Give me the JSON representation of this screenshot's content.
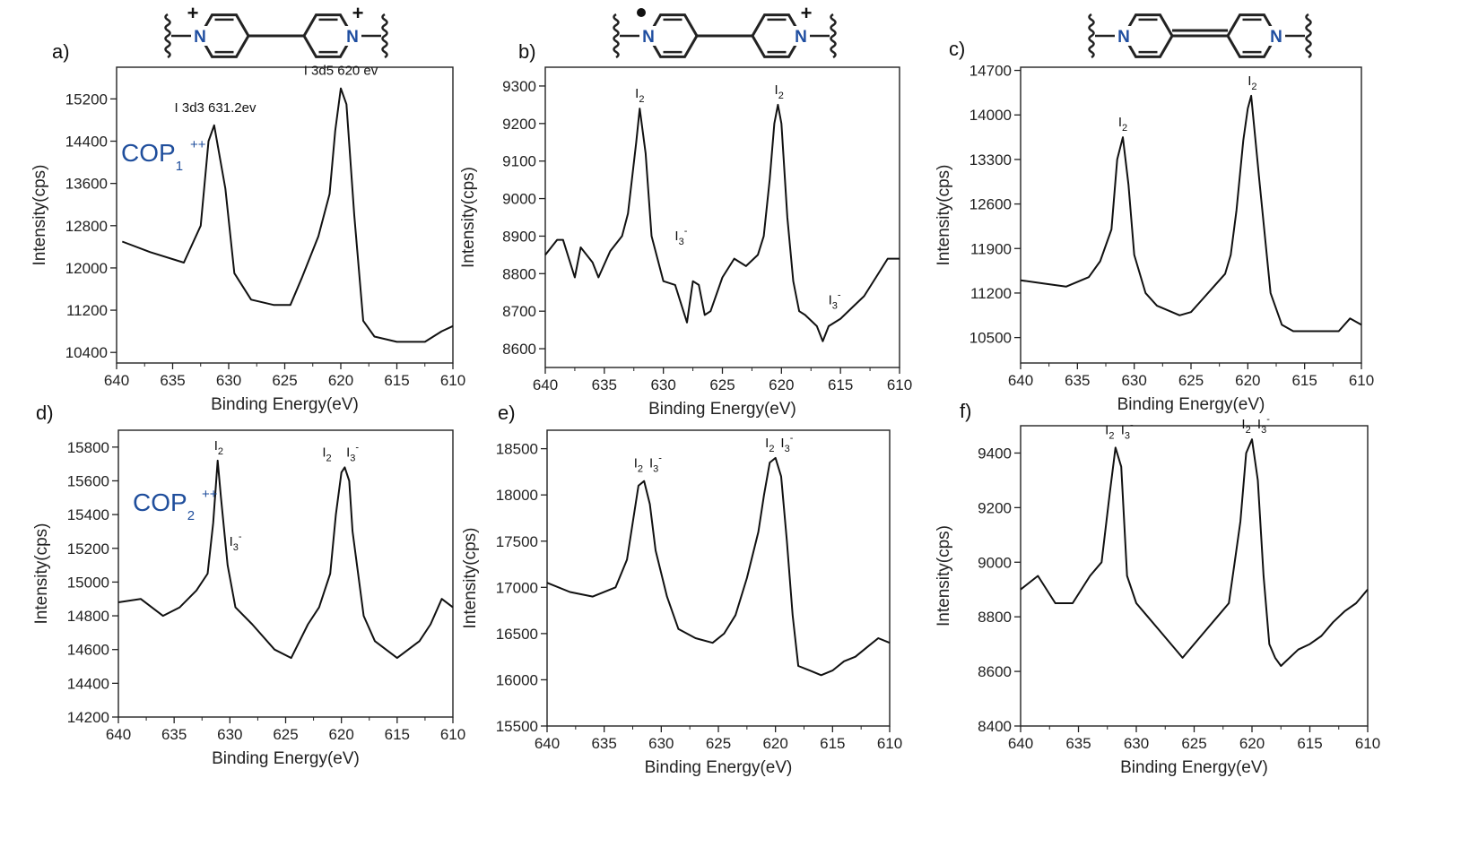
{
  "chart_data": [
    {
      "panel": "a)",
      "type": "line",
      "xlabel": "Binding Energy(eV)",
      "ylabel": "Intensity(cps)",
      "xlim": [
        640,
        610
      ],
      "ylim": [
        10200,
        15800
      ],
      "xticks": [
        "640",
        "635",
        "630",
        "625",
        "620",
        "615",
        "610"
      ],
      "yticks": [
        "10400",
        "11200",
        "12000",
        "12800",
        "13600",
        "14400",
        "15200"
      ],
      "compound": "COP",
      "compound_sub": "1",
      "compound_sup": "++",
      "structure_charges": [
        "+",
        "+"
      ],
      "annotations": [
        {
          "text": "I 3d3 631.2ev",
          "x": 631.2,
          "y": 14750
        },
        {
          "text": "I 3d5 620 ev",
          "x": 620,
          "y": 15450
        }
      ],
      "series": [
        {
          "x": [
            639.5,
            637,
            634,
            632.5,
            631.8,
            631.3,
            630.3,
            629.5,
            628,
            626,
            624.5,
            623.5,
            622,
            621,
            620.5,
            620,
            619.5,
            618.8,
            618,
            617,
            615,
            612.5,
            611,
            610
          ],
          "y": [
            12500,
            12300,
            12100,
            12800,
            14400,
            14700,
            13500,
            11900,
            11400,
            11300,
            11300,
            11800,
            12600,
            13400,
            14600,
            15400,
            15100,
            13000,
            11000,
            10700,
            10600,
            10600,
            10800,
            10900
          ]
        }
      ]
    },
    {
      "panel": "b)",
      "type": "line",
      "xlabel": "Binding Energy(eV)",
      "ylabel": "Intensity(cps)",
      "xlim": [
        640,
        610
      ],
      "ylim": [
        8550,
        9350
      ],
      "xticks": [
        "640",
        "635",
        "630",
        "625",
        "620",
        "615",
        "610"
      ],
      "yticks": [
        "8600",
        "8700",
        "8800",
        "8900",
        "9000",
        "9100",
        "9200",
        "9300"
      ],
      "structure_charges": [
        "•",
        "+"
      ],
      "annotations": [
        {
          "text": "I",
          "sub": "2",
          "x": 632,
          "y": 9240
        },
        {
          "text": "I",
          "sub": "2",
          "x": 620.2,
          "y": 9250
        },
        {
          "text": "I",
          "sub": "3",
          "sup": "-",
          "x": 628.5,
          "y": 8860
        },
        {
          "text": "I",
          "sub": "3",
          "sup": "-",
          "x": 615.5,
          "y": 8690
        }
      ],
      "series": [
        {
          "x": [
            640,
            639,
            638.5,
            637.5,
            637,
            636,
            635.5,
            634.5,
            633.5,
            633,
            632.3,
            632,
            631.5,
            631,
            630,
            629,
            628,
            627.5,
            627,
            626.5,
            626,
            625,
            624,
            623,
            622,
            621.5,
            621,
            620.6,
            620.3,
            620,
            619.5,
            619,
            618.5,
            618,
            617,
            616.5,
            616,
            615,
            614,
            613,
            612,
            611,
            610
          ],
          "y": [
            8850,
            8890,
            8890,
            8790,
            8870,
            8830,
            8790,
            8860,
            8900,
            8960,
            9150,
            9240,
            9120,
            8900,
            8780,
            8770,
            8670,
            8780,
            8770,
            8690,
            8700,
            8790,
            8840,
            8820,
            8850,
            8900,
            9050,
            9200,
            9250,
            9200,
            8950,
            8780,
            8700,
            8690,
            8660,
            8620,
            8660,
            8680,
            8710,
            8740,
            8790,
            8840,
            8840
          ]
        }
      ]
    },
    {
      "panel": "c)",
      "type": "line",
      "xlabel": "Binding Energy(eV)",
      "ylabel": "Intensity(cps)",
      "xlim": [
        640,
        610
      ],
      "ylim": [
        10100,
        14750
      ],
      "xticks": [
        "640",
        "635",
        "630",
        "625",
        "620",
        "615",
        "610"
      ],
      "yticks": [
        "10500",
        "11200",
        "11900",
        "12600",
        "13300",
        "14000",
        "14700"
      ],
      "structure_charges": [],
      "annotations": [
        {
          "text": "I",
          "sub": "2",
          "x": 631,
          "y": 13650
        },
        {
          "text": "I",
          "sub": "2",
          "x": 619.6,
          "y": 14300
        }
      ],
      "series": [
        {
          "x": [
            640,
            638,
            636,
            634,
            633,
            632,
            631.5,
            631,
            630.5,
            630,
            629,
            628,
            626,
            625,
            624,
            623,
            622,
            621.5,
            621,
            620.4,
            620,
            619.7,
            619,
            618,
            617,
            616,
            614,
            612,
            611,
            610
          ],
          "y": [
            11400,
            11350,
            11300,
            11450,
            11700,
            12200,
            13300,
            13650,
            12900,
            11800,
            11200,
            11000,
            10850,
            10900,
            11100,
            11300,
            11500,
            11800,
            12500,
            13600,
            14100,
            14300,
            13000,
            11200,
            10700,
            10600,
            10600,
            10600,
            10800,
            10700
          ]
        }
      ]
    },
    {
      "panel": "d)",
      "type": "line",
      "xlabel": "Binding Energy(eV)",
      "ylabel": "Intensity(cps)",
      "xlim": [
        640,
        610
      ],
      "ylim": [
        14200,
        15900
      ],
      "xticks": [
        "640",
        "635",
        "630",
        "625",
        "620",
        "615",
        "610"
      ],
      "yticks": [
        "14200",
        "14400",
        "14600",
        "14800",
        "15000",
        "15200",
        "15400",
        "15600",
        "15800"
      ],
      "compound": "COP",
      "compound_sub": "2",
      "compound_sup": "++",
      "annotations": [
        {
          "text": "I",
          "sub": "2",
          "x": 631,
          "y": 15720
        },
        {
          "text": "I",
          "sub": "3",
          "sup": "-",
          "x": 629.5,
          "y": 15150
        },
        {
          "text": "I",
          "sub": "2",
          "x": 621.3,
          "y": 15680
        },
        {
          "text": "I",
          "sub": "3",
          "sup": "-",
          "x": 619,
          "y": 15680
        }
      ],
      "series": [
        {
          "x": [
            640,
            638,
            636,
            634.5,
            633,
            632,
            631.5,
            631.1,
            630.8,
            630.2,
            629.5,
            628,
            626,
            624.5,
            623,
            622,
            621,
            620.5,
            620,
            619.7,
            619.3,
            619,
            618,
            617,
            615,
            613,
            612,
            611,
            610
          ],
          "y": [
            14880,
            14900,
            14800,
            14850,
            14950,
            15050,
            15350,
            15720,
            15500,
            15100,
            14850,
            14750,
            14600,
            14550,
            14750,
            14850,
            15050,
            15400,
            15650,
            15680,
            15600,
            15300,
            14800,
            14650,
            14550,
            14650,
            14750,
            14900,
            14850
          ]
        }
      ]
    },
    {
      "panel": "e)",
      "type": "line",
      "xlabel": "Binding Energy(eV)",
      "ylabel": "Intensity(cps)",
      "xlim": [
        640,
        610
      ],
      "ylim": [
        15500,
        18700
      ],
      "xticks": [
        "640",
        "635",
        "630",
        "625",
        "620",
        "615",
        "610"
      ],
      "yticks": [
        "15500",
        "16000",
        "16500",
        "17000",
        "17500",
        "18000",
        "18500"
      ],
      "annotations": [
        {
          "text": "I",
          "sub": "2",
          "x": 632,
          "y": 18180
        },
        {
          "text": "I",
          "sub": "3",
          "sup": "-",
          "x": 630.5,
          "y": 18180
        },
        {
          "text": "I",
          "sub": "2",
          "x": 620.5,
          "y": 18400
        },
        {
          "text": "I",
          "sub": "3",
          "sup": "-",
          "x": 619,
          "y": 18400
        }
      ],
      "series": [
        {
          "x": [
            640,
            638,
            636,
            634,
            633,
            632.5,
            632,
            631.5,
            631,
            630.5,
            629.5,
            628.5,
            627,
            625.5,
            624.5,
            623.5,
            622.5,
            621.5,
            621,
            620.5,
            620,
            619.5,
            619,
            618.5,
            618,
            617,
            616,
            615,
            614,
            613,
            612,
            611,
            610
          ],
          "y": [
            17050,
            16950,
            16900,
            17000,
            17300,
            17700,
            18100,
            18150,
            17900,
            17400,
            16900,
            16550,
            16450,
            16400,
            16500,
            16700,
            17100,
            17600,
            18000,
            18350,
            18400,
            18200,
            17500,
            16700,
            16150,
            16100,
            16050,
            16100,
            16200,
            16250,
            16350,
            16450,
            16400
          ]
        }
      ]
    },
    {
      "panel": "f)",
      "type": "line",
      "xlabel": "Binding Energy(eV)",
      "ylabel": "Intensity(cps)",
      "xlim": [
        640,
        610
      ],
      "ylim": [
        8400,
        9500
      ],
      "xticks": [
        "640",
        "635",
        "630",
        "625",
        "620",
        "615",
        "610"
      ],
      "yticks": [
        "8400",
        "8600",
        "8800",
        "9000",
        "9200",
        "9400"
      ],
      "annotations": [
        {
          "text": "I",
          "sub": "2",
          "x": 632.3,
          "y": 9430
        },
        {
          "text": "I",
          "sub": "3",
          "sup": "-",
          "x": 630.8,
          "y": 9430
        },
        {
          "text": "I",
          "sub": "2",
          "x": 620.5,
          "y": 9450
        },
        {
          "text": "I",
          "sub": "3",
          "sup": "-",
          "x": 619,
          "y": 9450
        }
      ],
      "series": [
        {
          "x": [
            640,
            638.5,
            637,
            635.5,
            634,
            633,
            632.3,
            631.8,
            631.3,
            630.8,
            630,
            629,
            628,
            627,
            626,
            625,
            624,
            623,
            622,
            621.5,
            621,
            620.5,
            620,
            619.5,
            619,
            618.5,
            618,
            617.5,
            617,
            616,
            615,
            614,
            613,
            612,
            611,
            610
          ],
          "y": [
            8900,
            8950,
            8850,
            8850,
            8950,
            9000,
            9250,
            9420,
            9350,
            8950,
            8850,
            8800,
            8750,
            8700,
            8650,
            8700,
            8750,
            8800,
            8850,
            9000,
            9150,
            9400,
            9450,
            9300,
            8950,
            8700,
            8650,
            8620,
            8640,
            8680,
            8700,
            8730,
            8780,
            8820,
            8850,
            8900
          ]
        }
      ]
    }
  ]
}
